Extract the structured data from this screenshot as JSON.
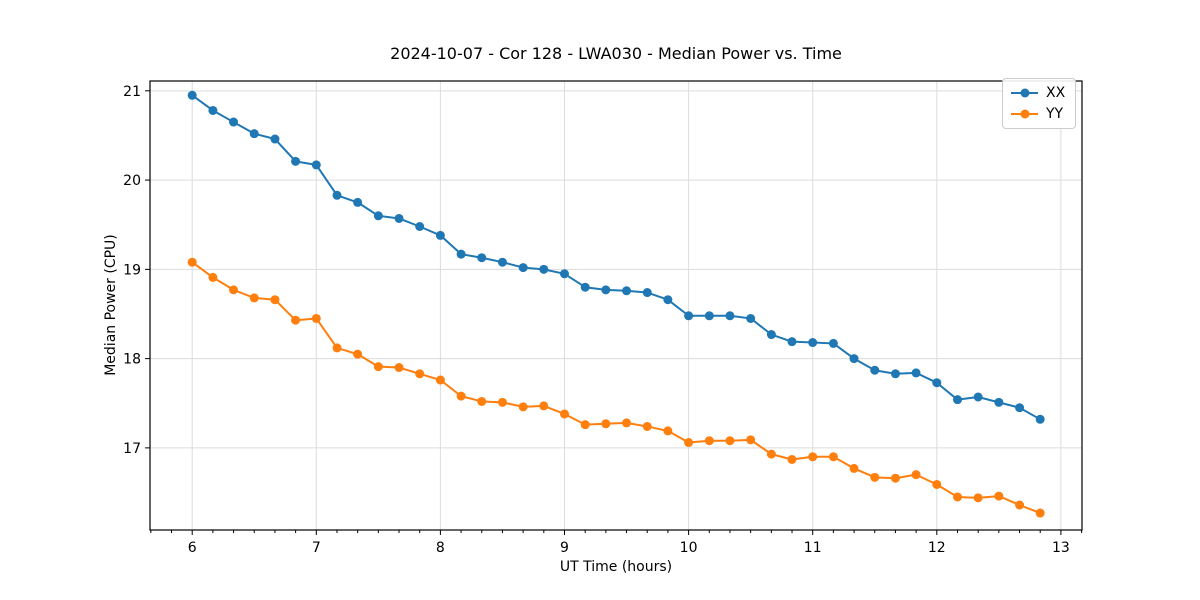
{
  "chart_data": {
    "type": "line",
    "title": "2024-10-07 - Cor 128 - LWA030 - Median Power vs. Time",
    "xlabel": "UT Time (hours)",
    "ylabel": "Median Power (CPU)",
    "grid": true,
    "grid_color": "#dcdcdc",
    "background_color": "#ffffff",
    "axes_color": "#000000",
    "legend_position": "upper right",
    "marker": "o",
    "xlim": [
      5.66,
      13.17
    ],
    "ylim": [
      16.08,
      21.11
    ],
    "x_ticks": [
      6,
      7,
      8,
      9,
      10,
      11,
      12,
      13
    ],
    "y_ticks": [
      17,
      18,
      19,
      20,
      21
    ],
    "x_minor_step": 0.1667,
    "x": [
      6.0,
      6.167,
      6.333,
      6.5,
      6.667,
      6.833,
      7.0,
      7.167,
      7.333,
      7.5,
      7.667,
      7.833,
      8.0,
      8.167,
      8.333,
      8.5,
      8.667,
      8.833,
      9.0,
      9.167,
      9.333,
      9.5,
      9.667,
      9.833,
      10.0,
      10.167,
      10.333,
      10.5,
      10.667,
      10.833,
      11.0,
      11.167,
      11.333,
      11.5,
      11.667,
      11.833,
      12.0,
      12.167,
      12.333,
      12.5,
      12.667,
      12.833
    ],
    "series": [
      {
        "name": "XX",
        "color": "#1f77b4",
        "values": [
          20.95,
          20.78,
          20.65,
          20.52,
          20.46,
          20.21,
          20.17,
          19.83,
          19.75,
          19.6,
          19.57,
          19.48,
          19.38,
          19.17,
          19.13,
          19.08,
          19.02,
          19.0,
          18.95,
          18.8,
          18.77,
          18.76,
          18.74,
          18.66,
          18.48,
          18.48,
          18.48,
          18.45,
          18.27,
          18.19,
          18.18,
          18.17,
          18.0,
          17.87,
          17.83,
          17.84,
          17.73,
          17.54,
          17.57,
          17.51,
          17.45,
          17.32
        ]
      },
      {
        "name": "YY",
        "color": "#ff7f0e",
        "values": [
          19.08,
          18.91,
          18.77,
          18.68,
          18.66,
          18.43,
          18.45,
          18.12,
          18.05,
          17.91,
          17.9,
          17.83,
          17.76,
          17.58,
          17.52,
          17.51,
          17.46,
          17.47,
          17.38,
          17.26,
          17.27,
          17.28,
          17.24,
          17.19,
          17.06,
          17.08,
          17.08,
          17.09,
          16.93,
          16.87,
          16.9,
          16.9,
          16.77,
          16.67,
          16.66,
          16.7,
          16.59,
          16.45,
          16.44,
          16.46,
          16.36,
          16.27
        ]
      }
    ]
  }
}
